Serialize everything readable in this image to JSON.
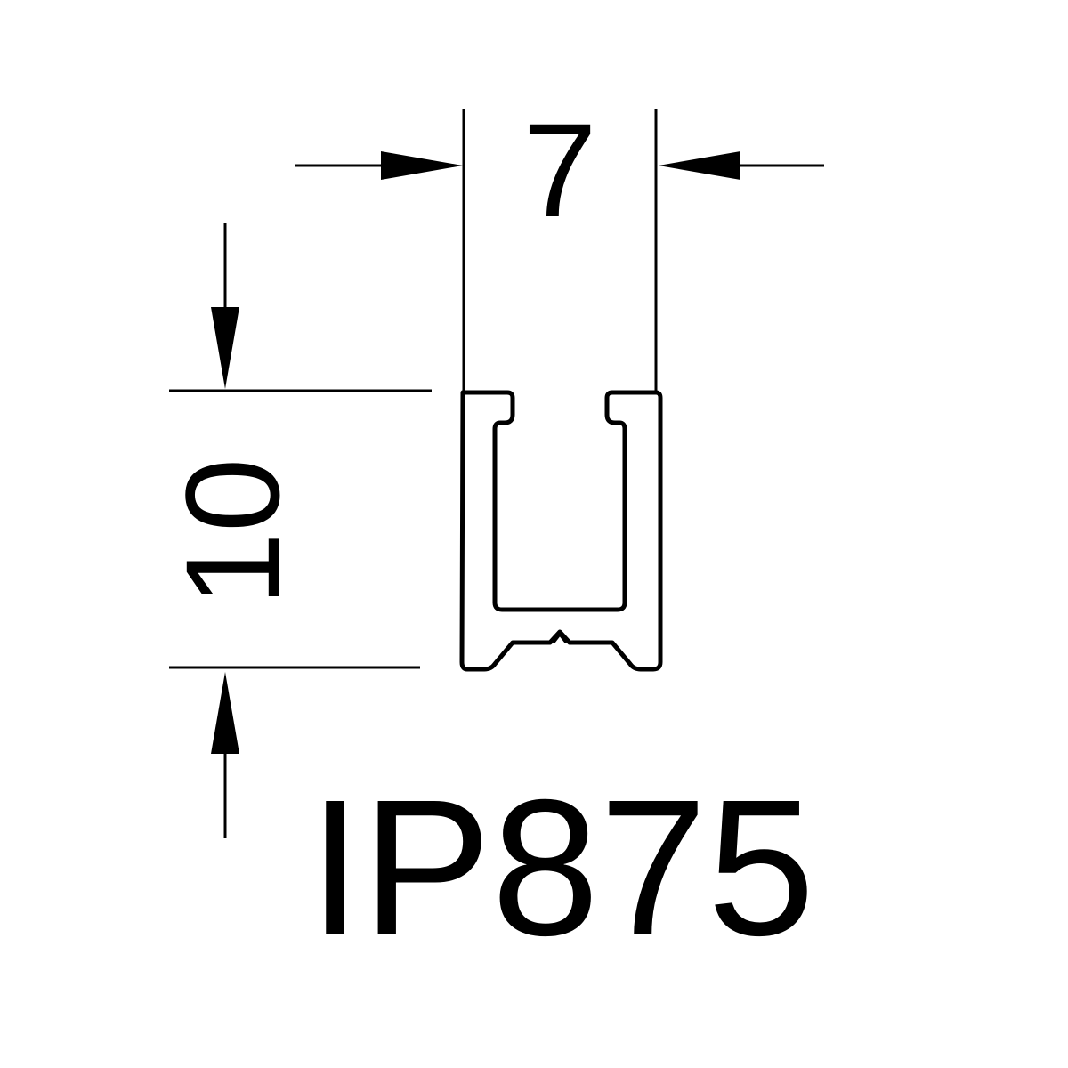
{
  "drawing": {
    "width_dimension": "7",
    "height_dimension": "10",
    "part_number": "IP875"
  },
  "colors": {
    "line": "#000000",
    "background": "#ffffff"
  }
}
